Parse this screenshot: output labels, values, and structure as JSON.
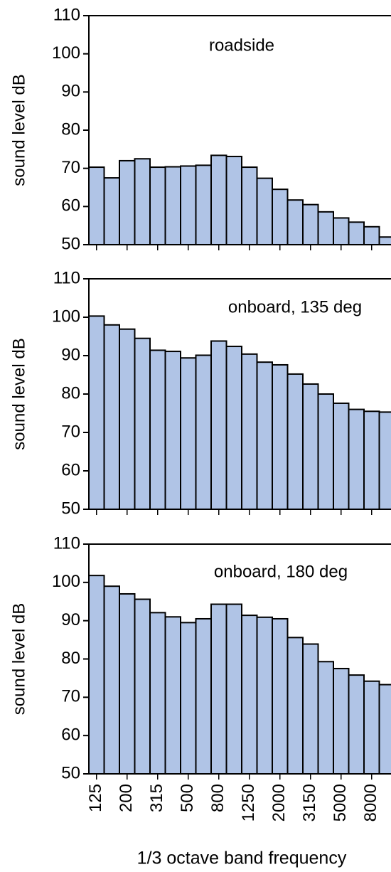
{
  "chart_data": [
    {
      "type": "bar",
      "title": "roadside",
      "ylabel": "sound level dB",
      "color": "#b0c4e6",
      "ylim": [
        50,
        110
      ],
      "yticks": [
        50,
        60,
        70,
        80,
        90,
        100,
        110
      ],
      "values": [
        70.3,
        67.5,
        72,
        72.5,
        70.3,
        70.4,
        70.6,
        70.8,
        73.4,
        73.1,
        70.3,
        67.4,
        64.5,
        61.7,
        60.5,
        58.6,
        57,
        55.9,
        54.7,
        52
      ]
    },
    {
      "type": "bar",
      "title": "onboard, 135 deg",
      "ylabel": "sound level dB",
      "color": "#b0c4e6",
      "ylim": [
        50,
        110
      ],
      "yticks": [
        50,
        60,
        70,
        80,
        90,
        100,
        110
      ],
      "values": [
        100.3,
        98,
        96.9,
        94.5,
        91.4,
        91.1,
        89.4,
        90.1,
        93.8,
        92.4,
        90.4,
        88.3,
        87.6,
        85.2,
        82.6,
        80,
        77.6,
        76,
        75.5,
        75.3
      ]
    },
    {
      "type": "bar",
      "title": "onboard, 180 deg",
      "ylabel": "sound level dB",
      "xlabel": "1/3 octave band frequency",
      "color": "#b0c4e6",
      "ylim": [
        50,
        110
      ],
      "yticks": [
        50,
        60,
        70,
        80,
        90,
        100,
        110
      ],
      "categories": [
        "125",
        null,
        "200",
        null,
        "315",
        null,
        "500",
        null,
        "800",
        null,
        "1250",
        null,
        "2000",
        null,
        "3150",
        null,
        "5000",
        null,
        "8000",
        null
      ],
      "values": [
        101.8,
        99,
        97,
        95.6,
        92.1,
        91,
        89.5,
        90.5,
        94.3,
        94.3,
        91.4,
        90.9,
        90.5,
        85.6,
        83.9,
        79.3,
        77.5,
        75.8,
        74.2,
        73.3
      ]
    }
  ]
}
